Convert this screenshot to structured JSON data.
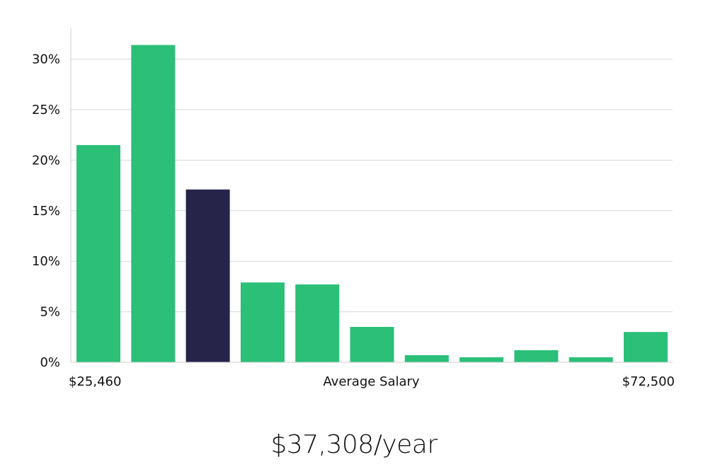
{
  "chart_data": {
    "type": "bar",
    "values": [
      21.5,
      31.4,
      17.1,
      7.9,
      7.7,
      3.5,
      0.7,
      0.5,
      1.2,
      0.5,
      3.0
    ],
    "highlight_index": 2,
    "ylim": [
      0,
      33
    ],
    "yticks": [
      0,
      5,
      10,
      15,
      20,
      25,
      30
    ],
    "ytick_labels": [
      "0%",
      "5%",
      "10%",
      "15%",
      "20%",
      "25%",
      "30%"
    ],
    "xlabel": "Average Salary",
    "x_min_label": "$25,460",
    "x_max_label": "$72,500",
    "grid": true,
    "colors": {
      "bar": "#2bbf78",
      "highlight": "#27244a",
      "grid": "#d9d9d9",
      "axis": "#cccccc"
    }
  },
  "salary_heading": "$37,308/year"
}
